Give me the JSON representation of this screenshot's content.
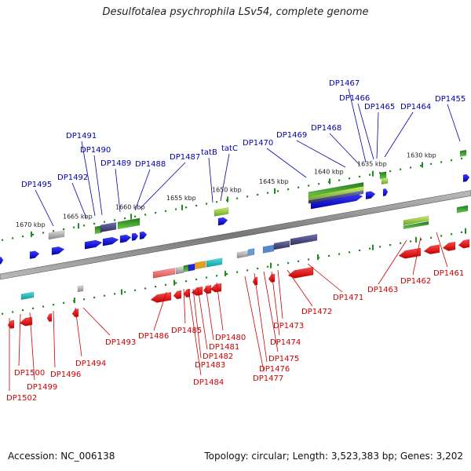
{
  "header": {
    "title": "Desulfotalea psychrophila LSv54, complete genome"
  },
  "footer": {
    "accession": "Accession: NC_006138",
    "summary": "Topology: circular; Length: 3,523,383 bp; Genes: 3,202"
  },
  "colors": {
    "forward": "#0000ff",
    "reverse": "#ff0000",
    "axis": "#808080",
    "ticks": "#228b22",
    "label_top": "#0000aa",
    "label_bot": "#cc0000"
  },
  "ticks": [
    {
      "label": "1670 kbp"
    },
    {
      "label": "1665 kbp"
    },
    {
      "label": "1660 kbp"
    },
    {
      "label": "1655 kbp"
    },
    {
      "label": "1650 kbp"
    },
    {
      "label": "1645 kbp"
    },
    {
      "label": "1640 kbp"
    },
    {
      "label": "1635 kbp"
    },
    {
      "label": "1630 kbp"
    }
  ],
  "genes_top": [
    {
      "label": "DP1495"
    },
    {
      "label": "DP1492"
    },
    {
      "label": "DP1491"
    },
    {
      "label": "DP1490"
    },
    {
      "label": "DP1489"
    },
    {
      "label": "DP1488"
    },
    {
      "label": "DP1487"
    },
    {
      "label": "tatB"
    },
    {
      "label": "tatC"
    },
    {
      "label": "DP1470"
    },
    {
      "label": "DP1469"
    },
    {
      "label": "DP1468"
    },
    {
      "label": "DP1467"
    },
    {
      "label": "DP1466"
    },
    {
      "label": "DP1465"
    },
    {
      "label": "DP1464"
    },
    {
      "label": "DP1455"
    }
  ],
  "genes_bottom": [
    {
      "label": "DP1502"
    },
    {
      "label": "DP1500"
    },
    {
      "label": "DP1499"
    },
    {
      "label": "DP1496"
    },
    {
      "label": "DP1494"
    },
    {
      "label": "DP1493"
    },
    {
      "label": "DP1486"
    },
    {
      "label": "DP1485"
    },
    {
      "label": "DP1484"
    },
    {
      "label": "DP1483"
    },
    {
      "label": "DP1482"
    },
    {
      "label": "DP1481"
    },
    {
      "label": "DP1480"
    },
    {
      "label": "DP1477"
    },
    {
      "label": "DP1476"
    },
    {
      "label": "DP1475"
    },
    {
      "label": "DP1474"
    },
    {
      "label": "DP1473"
    },
    {
      "label": "DP1472"
    },
    {
      "label": "DP1471"
    },
    {
      "label": "DP1463"
    },
    {
      "label": "DP1462"
    },
    {
      "label": "DP1461"
    }
  ]
}
